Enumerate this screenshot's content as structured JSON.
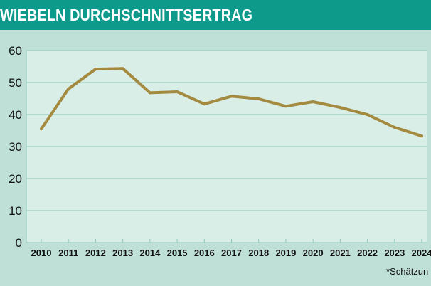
{
  "header": {
    "title": "WIEBELN DURCHSCHNITTSERTRAG"
  },
  "footnote": "*Schätzun",
  "colors": {
    "header": "#0e9a8a",
    "page_background": "#bfe0d7",
    "plot_background": "#daeee8",
    "grid": "#8fc6b9",
    "line": "#a48a3e"
  },
  "chart_data": {
    "type": "line",
    "title": "WIEBELN DURCHSCHNITTSERTRAG",
    "xlabel": "",
    "ylabel": "",
    "categories": [
      "2010",
      "2011",
      "2012",
      "2013",
      "2014",
      "2015",
      "2016",
      "2017",
      "2018",
      "2019",
      "2020",
      "2021",
      "2022",
      "2023",
      "2024"
    ],
    "series": [
      {
        "values": [
          35.5,
          48.0,
          54.2,
          54.4,
          46.8,
          47.1,
          43.3,
          45.7,
          44.9,
          42.6,
          44.0,
          42.2,
          40.0,
          36.0,
          33.3
        ]
      }
    ],
    "ylim": [
      0,
      60
    ],
    "yticks": [
      0,
      10,
      20,
      30,
      40,
      50,
      60
    ],
    "grid": true,
    "legend": "none"
  }
}
